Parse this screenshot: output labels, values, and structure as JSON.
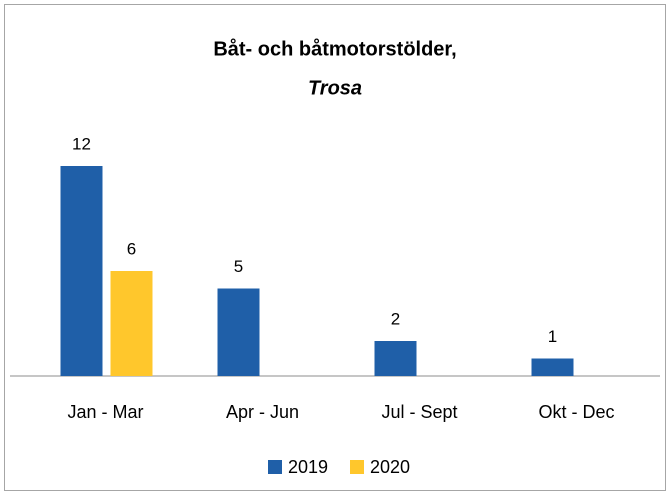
{
  "chart_data": {
    "type": "bar",
    "title": "Båt- och båtmotorstölder,",
    "subtitle": "Trosa",
    "categories": [
      "Jan - Mar",
      "Apr - Jun",
      "Jul - Sept",
      "Okt - Dec"
    ],
    "series": [
      {
        "name": "2019",
        "color": "#1f5fa8",
        "values": [
          12,
          5,
          2,
          1
        ]
      },
      {
        "name": "2020",
        "color": "#ffc72c",
        "values": [
          6,
          null,
          null,
          null
        ]
      }
    ],
    "legend": "bottom"
  }
}
